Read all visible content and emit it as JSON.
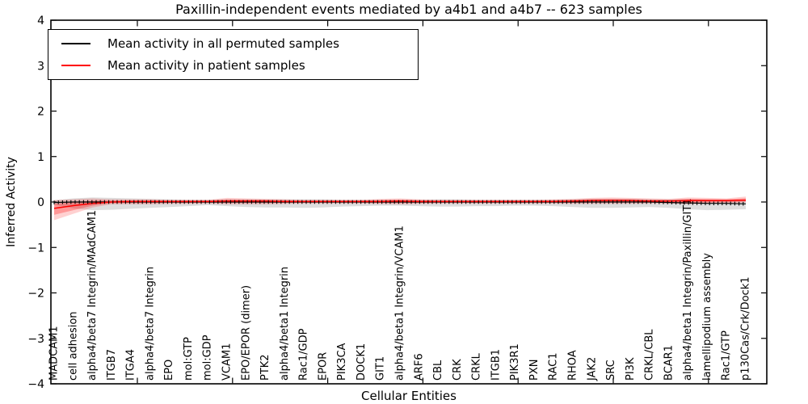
{
  "figure": {
    "title": "Paxillin-independent events mediated by a4b1 and a4b7 -- 623 samples",
    "xlabel": "Cellular Entities",
    "ylabel": "Inferred Activity"
  },
  "legend": {
    "items": [
      {
        "label": "Mean activity in all permuted samples",
        "color": "#000000"
      },
      {
        "label": "Mean activity in patient samples",
        "color": "#ff0000"
      }
    ]
  },
  "chart_data": {
    "type": "line",
    "title": "Paxillin-independent events mediated by a4b1 and a4b7 -- 623 samples",
    "xlabel": "Cellular Entities",
    "ylabel": "Inferred Activity",
    "ylim": [
      -4,
      4
    ],
    "yticks": [
      4,
      3,
      2,
      1,
      0,
      -1,
      -2,
      -3,
      -4
    ],
    "grid": false,
    "legend_position": "upper left",
    "categories": [
      "MADCAM1",
      "cell adhesion",
      "alpha4/beta7 Integrin/MAdCAM1",
      "ITGB7",
      "ITGA4",
      "alpha4/beta7 Integrin",
      "EPO",
      "mol:GTP",
      "mol:GDP",
      "VCAM1",
      "EPO/EPOR (dimer)",
      "PTK2",
      "alpha4/beta1 Integrin",
      "Rac1/GDP",
      "EPOR",
      "PIK3CA",
      "DOCK1",
      "GIT1",
      "alpha4/beta1 Integrin/VCAM1",
      "ARF6",
      "CBL",
      "CRK",
      "CRKL",
      "ITGB1",
      "PIK3R1",
      "PXN",
      "RAC1",
      "RHOA",
      "JAK2",
      "SRC",
      "PI3K",
      "CRKL/CBL",
      "BCAR1",
      "alpha4/beta1 Integrin/Paxillin/GIT1",
      "lamellipodium assembly",
      "Rac1/GTP",
      "p130Cas/Crk/Dock1"
    ],
    "series": [
      {
        "name": "Mean activity in all permuted samples",
        "color": "#000000",
        "band_color": "#999999",
        "values": [
          -0.01,
          0,
          0,
          0,
          0,
          0,
          0,
          0,
          0,
          0,
          0,
          0,
          0,
          0,
          0,
          0,
          0,
          0,
          0,
          0,
          0,
          0,
          0,
          0,
          0,
          0,
          0,
          0,
          0,
          0,
          0,
          0,
          -0.01,
          -0.02,
          -0.03,
          -0.03,
          -0.04
        ],
        "band_lower": [
          -0.06,
          -0.14,
          -0.18,
          -0.17,
          -0.15,
          -0.13,
          -0.11,
          -0.09,
          -0.07,
          -0.09,
          -0.11,
          -0.12,
          -0.12,
          -0.13,
          -0.12,
          -0.1,
          -0.09,
          -0.08,
          -0.08,
          -0.09,
          -0.1,
          -0.1,
          -0.09,
          -0.09,
          -0.08,
          -0.08,
          -0.09,
          -0.11,
          -0.13,
          -0.13,
          -0.12,
          -0.11,
          -0.13,
          -0.16,
          -0.18,
          -0.17,
          -0.16
        ],
        "band_upper": [
          0.04,
          0.08,
          0.1,
          0.09,
          0.08,
          0.07,
          0.06,
          0.05,
          0.05,
          0.06,
          0.06,
          0.06,
          0.06,
          0.06,
          0.06,
          0.05,
          0.05,
          0.05,
          0.05,
          0.05,
          0.06,
          0.06,
          0.05,
          0.05,
          0.05,
          0.05,
          0.05,
          0.06,
          0.07,
          0.07,
          0.07,
          0.06,
          0.06,
          0.06,
          0.05,
          0.05,
          0.04
        ]
      },
      {
        "name": "Mean activity in patient samples",
        "color": "#ff0000",
        "band_color": "#ff0000",
        "values": [
          -0.14,
          -0.08,
          -0.03,
          0.0,
          0.01,
          0.01,
          0.01,
          0.01,
          0.01,
          0.02,
          0.02,
          0.02,
          0.01,
          0.01,
          0.01,
          0.01,
          0.01,
          0.01,
          0.02,
          0.01,
          0.01,
          0.01,
          0.01,
          0.01,
          0.01,
          0.01,
          0.01,
          0.02,
          0.03,
          0.03,
          0.03,
          0.02,
          0.02,
          0.03,
          0.03,
          0.03,
          0.04
        ],
        "band_lower": [
          -0.4,
          -0.26,
          -0.12,
          -0.05,
          -0.05,
          -0.05,
          -0.04,
          -0.04,
          -0.03,
          -0.05,
          -0.05,
          -0.05,
          -0.04,
          -0.03,
          -0.03,
          -0.03,
          -0.03,
          -0.04,
          -0.05,
          -0.04,
          -0.03,
          -0.03,
          -0.03,
          -0.03,
          -0.03,
          -0.03,
          -0.03,
          -0.04,
          -0.04,
          -0.04,
          -0.04,
          -0.03,
          -0.03,
          -0.05,
          -0.04,
          -0.03,
          -0.01
        ],
        "band_upper": [
          0.04,
          0.06,
          0.08,
          0.06,
          0.06,
          0.06,
          0.05,
          0.05,
          0.05,
          0.09,
          0.08,
          0.07,
          0.06,
          0.05,
          0.05,
          0.05,
          0.05,
          0.07,
          0.08,
          0.06,
          0.05,
          0.05,
          0.05,
          0.05,
          0.05,
          0.05,
          0.06,
          0.07,
          0.09,
          0.1,
          0.09,
          0.08,
          0.07,
          0.1,
          0.09,
          0.08,
          0.12
        ]
      }
    ]
  }
}
